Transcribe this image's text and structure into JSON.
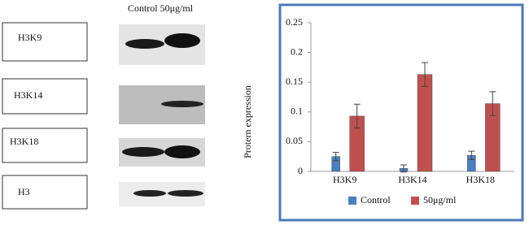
{
  "blot": {
    "header": "Control 50μg/ml",
    "labels": [
      "H3K9",
      "H3K14",
      "H3K18",
      "H3"
    ]
  },
  "chart_data": {
    "type": "bar",
    "ylabel": "Protern     expression",
    "categories": [
      "H3K9",
      "H3K14",
      "H3K18"
    ],
    "series": [
      {
        "name": "Control",
        "color": "#4a7fc1",
        "values": [
          0.025,
          0.005,
          0.027
        ],
        "errors": [
          0.007,
          0.006,
          0.007
        ]
      },
      {
        "name": "50μg/ml",
        "color": "#c0504d",
        "values": [
          0.093,
          0.163,
          0.114
        ],
        "errors": [
          0.02,
          0.02,
          0.02
        ]
      }
    ],
    "ylim": [
      0,
      0.25
    ],
    "yticks": [
      0,
      0.05,
      0.1,
      0.15,
      0.2,
      0.25
    ],
    "grid": false,
    "legend": "bottom"
  }
}
